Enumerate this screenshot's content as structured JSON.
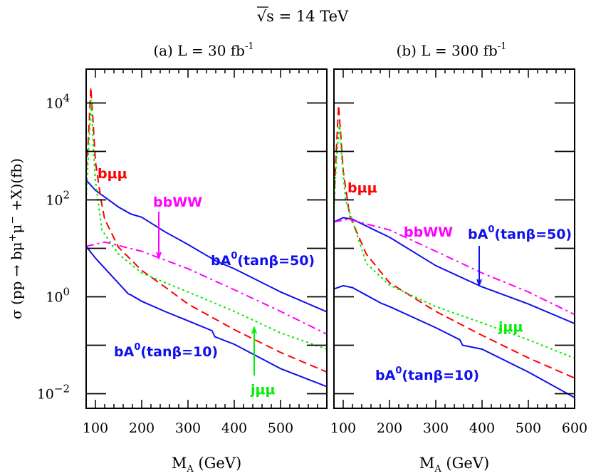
{
  "title": {
    "text": "√s  =  14 TeV"
  },
  "y_axis": {
    "parts": [
      "σ (pp → bμ",
      "+",
      "μ",
      "−",
      " +X)(fb)"
    ],
    "tick_labels": [
      {
        "base": "10",
        "exp": "4",
        "value": 10000
      },
      {
        "base": "10",
        "exp": "2",
        "value": 100
      },
      {
        "base": "10",
        "exp": "0",
        "value": 1
      },
      {
        "base": "10",
        "exp": "−2",
        "value": 0.01
      }
    ]
  },
  "colors": {
    "bA0": "#1010ee",
    "bmumu": "#ff0000",
    "jmumu": "#00ee00",
    "bbWW": "#ff00ff",
    "axis": "#000000"
  },
  "chart_data": [
    {
      "type": "line",
      "title": "(a) L = 30 fb",
      "title_sup": "-1",
      "xlabel": "M",
      "xlabel_sub": "A",
      "xlabel_rest": " (GeV)",
      "ylabel": "σ (pp → bμ+μ− +X)(fb)",
      "xlim": [
        80,
        600
      ],
      "ylim": [
        0.005,
        50000
      ],
      "yscale": "log",
      "grid": false,
      "x_tick_labels": [
        "100",
        "200",
        "300",
        "400",
        "500"
      ],
      "series": [
        {
          "key": "bA0",
          "label": {
            "main": "bA",
            "sup": "0",
            "rest": "(tanβ=50)"
          },
          "style": "solid",
          "x": [
            80,
            100,
            150,
            175,
            180,
            200,
            250,
            300,
            350,
            360,
            400,
            500,
            600
          ],
          "y": [
            257,
            158,
            71,
            52,
            50,
            44,
            22,
            12,
            6.3,
            5.5,
            3.8,
            1.26,
            0.49
          ]
        },
        {
          "key": "bA0",
          "label": {
            "main": "bA",
            "sup": "0",
            "rest": "(tanβ=10)"
          },
          "style": "solid",
          "x": [
            80,
            100,
            150,
            171,
            176,
            200,
            250,
            300,
            352,
            358,
            400,
            500,
            600
          ],
          "y": [
            11,
            6.3,
            1.9,
            1.15,
            1.1,
            0.81,
            0.5,
            0.32,
            0.2,
            0.15,
            0.105,
            0.033,
            0.014
          ]
        },
        {
          "key": "bmumu",
          "label": {
            "main": "bμμ",
            "sup": "",
            "rest": ""
          },
          "style": "dashed",
          "x": [
            80,
            85,
            90,
            95,
            100,
            112,
            120,
            150,
            200,
            250,
            300,
            400,
            500,
            600
          ],
          "y": [
            437,
            2000,
            21000,
            4000,
            630,
            100,
            40,
            10.5,
            3.5,
            1.6,
            0.71,
            0.21,
            0.071,
            0.028
          ]
        },
        {
          "key": "jmumu",
          "label": {
            "main": "jμμ",
            "sup": "",
            "rest": ""
          },
          "style": "dotted",
          "x": [
            80,
            85,
            91,
            96,
            100,
            114,
            150,
            200,
            300,
            400,
            500,
            600
          ],
          "y": [
            100,
            1000,
            11700,
            1000,
            250,
            24,
            7.6,
            3.1,
            1.26,
            0.5,
            0.18,
            0.083
          ]
        },
        {
          "key": "bbWW",
          "label": {
            "main": "bbWW",
            "sup": "",
            "rest": ""
          },
          "style": "dashdot",
          "x": [
            80,
            120,
            200,
            300,
            400,
            500,
            600
          ],
          "y": [
            11,
            13.5,
            8.7,
            3.8,
            1.4,
            0.5,
            0.17
          ]
        }
      ]
    },
    {
      "type": "line",
      "title": "(b) L = 300 fb",
      "title_sup": "-1",
      "xlabel": "M",
      "xlabel_sub": "A",
      "xlabel_rest": " (GeV)",
      "ylabel": "σ (pp → bμ+μ− +X)(fb)",
      "xlim": [
        80,
        600
      ],
      "ylim": [
        0.005,
        50000
      ],
      "yscale": "log",
      "grid": false,
      "x_tick_labels": [
        "100",
        "200",
        "300",
        "400",
        "500",
        "600"
      ],
      "series": [
        {
          "key": "bA0",
          "label": {
            "main": "bA",
            "sup": "0",
            "rest": "(tanβ=50)"
          },
          "style": "solid",
          "x": [
            80,
            100,
            120,
            175,
            180,
            200,
            300,
            400,
            500,
            600
          ],
          "y": [
            35,
            43,
            40,
            22,
            21,
            17,
            4.4,
            1.6,
            0.71,
            0.28
          ]
        },
        {
          "key": "bA0",
          "label": {
            "main": "bA",
            "sup": "0",
            "rest": "(tanβ=10)"
          },
          "style": "solid",
          "x": [
            80,
            100,
            120,
            175,
            180,
            200,
            300,
            352,
            358,
            400,
            500,
            600
          ],
          "y": [
            1.45,
            1.7,
            1.55,
            0.8,
            0.75,
            0.63,
            0.23,
            0.13,
            0.1,
            0.083,
            0.028,
            0.0083
          ]
        },
        {
          "key": "bmumu",
          "label": {
            "main": "bμμ",
            "sup": "",
            "rest": ""
          },
          "style": "dashed",
          "x": [
            80,
            85,
            90,
            95,
            100,
            114,
            150,
            200,
            300,
            400,
            500,
            600
          ],
          "y": [
            100,
            1000,
            9000,
            2000,
            400,
            47,
            7.6,
            1.95,
            0.5,
            0.16,
            0.055,
            0.021
          ]
        },
        {
          "key": "jmumu",
          "label": {
            "main": "jμμ",
            "sup": "",
            "rest": ""
          },
          "style": "dotted",
          "x": [
            80,
            85,
            92,
            97,
            105,
            150,
            200,
            300,
            400,
            500,
            600
          ],
          "y": [
            66,
            600,
            3800,
            700,
            100,
            4.9,
            1.74,
            0.63,
            0.29,
            0.13,
            0.054
          ]
        },
        {
          "key": "bbWW",
          "label": {
            "main": "bbWW",
            "sup": "",
            "rest": ""
          },
          "style": "dashdot",
          "x": [
            80,
            110,
            200,
            300,
            400,
            500,
            600
          ],
          "y": [
            35,
            40,
            24,
            8.7,
            3.1,
            1.26,
            0.43
          ]
        }
      ]
    }
  ]
}
